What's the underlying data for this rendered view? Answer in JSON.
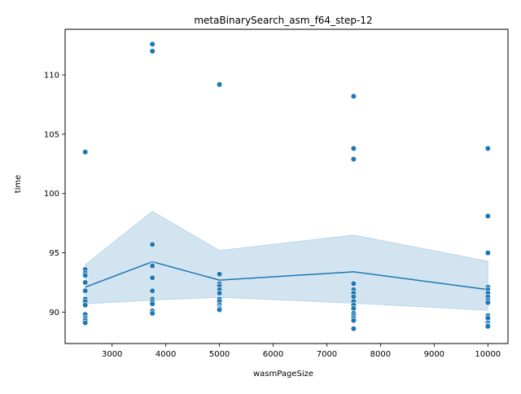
{
  "chart_data": {
    "type": "scatter",
    "title": "metaBinarySearch_asm_f64_step-12",
    "xlabel": "wasmPageSize",
    "ylabel": "time",
    "xlim": [
      2125,
      10375
    ],
    "ylim": [
      87.35,
      113.85
    ],
    "xticks": [
      3000,
      4000,
      5000,
      6000,
      7000,
      8000,
      9000,
      10000
    ],
    "yticks": [
      90,
      95,
      100,
      105,
      110
    ],
    "color": "#1f77b4",
    "grid": false,
    "legend": "none",
    "points": [
      {
        "x": 2500,
        "y": 103.5
      },
      {
        "x": 2500,
        "y": 93.6
      },
      {
        "x": 2500,
        "y": 93.3
      },
      {
        "x": 2500,
        "y": 93.1
      },
      {
        "x": 2500,
        "y": 92.5
      },
      {
        "x": 2500,
        "y": 91.8
      },
      {
        "x": 2500,
        "y": 91.1
      },
      {
        "x": 2500,
        "y": 90.9
      },
      {
        "x": 2500,
        "y": 90.6
      },
      {
        "x": 2500,
        "y": 89.8
      },
      {
        "x": 2500,
        "y": 89.5
      },
      {
        "x": 2500,
        "y": 89.3
      },
      {
        "x": 2500,
        "y": 89.1
      },
      {
        "x": 3750,
        "y": 112.6
      },
      {
        "x": 3750,
        "y": 112.0
      },
      {
        "x": 3750,
        "y": 95.7
      },
      {
        "x": 3750,
        "y": 94.0
      },
      {
        "x": 3750,
        "y": 93.9
      },
      {
        "x": 3750,
        "y": 92.9
      },
      {
        "x": 3750,
        "y": 91.8
      },
      {
        "x": 3750,
        "y": 91.1
      },
      {
        "x": 3750,
        "y": 90.9
      },
      {
        "x": 3750,
        "y": 90.7
      },
      {
        "x": 3750,
        "y": 90.1
      },
      {
        "x": 3750,
        "y": 89.9
      },
      {
        "x": 5000,
        "y": 109.2
      },
      {
        "x": 5000,
        "y": 93.2
      },
      {
        "x": 5000,
        "y": 92.4
      },
      {
        "x": 5000,
        "y": 92.2
      },
      {
        "x": 5000,
        "y": 91.9
      },
      {
        "x": 5000,
        "y": 91.6
      },
      {
        "x": 5000,
        "y": 91.1
      },
      {
        "x": 5000,
        "y": 90.9
      },
      {
        "x": 5000,
        "y": 90.6
      },
      {
        "x": 5000,
        "y": 90.4
      },
      {
        "x": 5000,
        "y": 90.3
      },
      {
        "x": 5000,
        "y": 90.2
      },
      {
        "x": 7500,
        "y": 108.2
      },
      {
        "x": 7500,
        "y": 103.8
      },
      {
        "x": 7500,
        "y": 102.9
      },
      {
        "x": 7500,
        "y": 92.4
      },
      {
        "x": 7500,
        "y": 91.9
      },
      {
        "x": 7500,
        "y": 91.6
      },
      {
        "x": 7500,
        "y": 91.3
      },
      {
        "x": 7500,
        "y": 90.9
      },
      {
        "x": 7500,
        "y": 90.6
      },
      {
        "x": 7500,
        "y": 90.3
      },
      {
        "x": 7500,
        "y": 89.9
      },
      {
        "x": 7500,
        "y": 89.7
      },
      {
        "x": 7500,
        "y": 89.5
      },
      {
        "x": 7500,
        "y": 89.3
      },
      {
        "x": 7500,
        "y": 88.6
      },
      {
        "x": 10000,
        "y": 103.8
      },
      {
        "x": 10000,
        "y": 98.1
      },
      {
        "x": 10000,
        "y": 95.0
      },
      {
        "x": 10000,
        "y": 92.1
      },
      {
        "x": 10000,
        "y": 91.9
      },
      {
        "x": 10000,
        "y": 91.6
      },
      {
        "x": 10000,
        "y": 91.3
      },
      {
        "x": 10000,
        "y": 91.0
      },
      {
        "x": 10000,
        "y": 90.8
      },
      {
        "x": 10000,
        "y": 89.7
      },
      {
        "x": 10000,
        "y": 89.5
      },
      {
        "x": 10000,
        "y": 89.1
      },
      {
        "x": 10000,
        "y": 88.9
      },
      {
        "x": 10000,
        "y": 88.8
      }
    ],
    "mean_line": {
      "x": [
        2500,
        3750,
        5000,
        7500,
        10000
      ],
      "y": [
        92.1,
        94.25,
        92.7,
        93.4,
        91.9
      ]
    },
    "confidence_band": {
      "x": [
        2500,
        3750,
        5000,
        7500,
        10000
      ],
      "lower": [
        90.7,
        91.0,
        91.25,
        90.75,
        90.15
      ],
      "upper": [
        94.0,
        98.5,
        95.2,
        96.5,
        94.3
      ]
    }
  }
}
